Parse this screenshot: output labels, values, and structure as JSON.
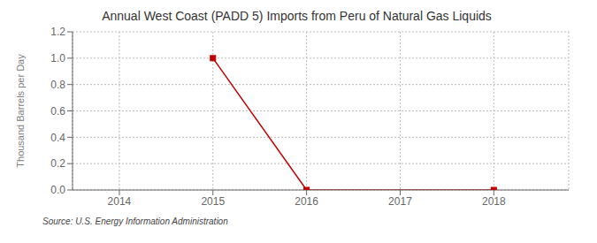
{
  "chart_data": {
    "type": "line",
    "title": "Annual West Coast (PADD 5) Imports from Peru of Natural Gas Liquids",
    "ylabel": "Thousand Barrels per Day",
    "annotations": [
      "Source: U.S. Energy Information Administration"
    ],
    "x": [
      2015,
      2016,
      2018
    ],
    "values": [
      1.0,
      0.0,
      0.0
    ],
    "color": "#c00000",
    "marker": "square",
    "xlim": [
      2013.5,
      2018.8
    ],
    "xticks": [
      2014,
      2015,
      2016,
      2017,
      2018
    ],
    "ylim": [
      0.0,
      1.2
    ],
    "yticks": [
      {
        "value": 0.0,
        "label": "0.0"
      },
      0.2,
      0.4,
      0.6,
      0.8,
      {
        "value": 1.0,
        "label": "1.0"
      },
      1.2
    ],
    "grid": true
  }
}
